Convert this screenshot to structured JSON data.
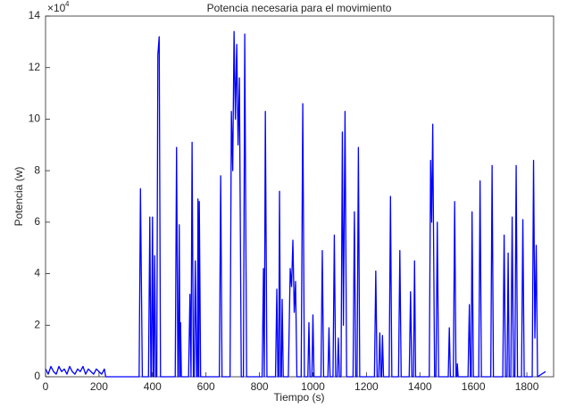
{
  "chart_data": {
    "type": "line",
    "title": "Potencia necesaria para el movimiento",
    "x_label": "Tiempo (s)",
    "y_label": "Potencia (w)",
    "y_multiplier": "×10",
    "y_exponent": "4",
    "xlim": [
      0,
      1900
    ],
    "xticks": [
      0,
      200,
      400,
      600,
      800,
      1000,
      1200,
      1400,
      1600,
      1800
    ],
    "ylim": [
      0,
      14
    ],
    "yticks": [
      0,
      2,
      4,
      6,
      8,
      10,
      12,
      14
    ],
    "series": [
      {
        "color": "#0000ff",
        "x": [
          0,
          10,
          20,
          30,
          40,
          50,
          60,
          70,
          80,
          90,
          100,
          110,
          120,
          130,
          140,
          150,
          160,
          170,
          180,
          190,
          200,
          210,
          220,
          225,
          350,
          355,
          362,
          385,
          390,
          394,
          396,
          400,
          403,
          405,
          408,
          412,
          416,
          420,
          425,
          430,
          485,
          490,
          495,
          497,
          500,
          503,
          505,
          508,
          535,
          540,
          544,
          548,
          553,
          556,
          560,
          565,
          568,
          570,
          573,
          575,
          580,
          650,
          655,
          660,
          690,
          695,
          700,
          705,
          710,
          715,
          720,
          725,
          732,
          740,
          745,
          752,
          810,
          815,
          818,
          822,
          828,
          860,
          865,
          869,
          872,
          875,
          879,
          882,
          885,
          889,
          908,
          915,
          920,
          925,
          930,
          935,
          940,
          956,
          962,
          968,
          981,
          985,
          989,
          996,
          1000,
          1004,
          1030,
          1035,
          1040,
          1056,
          1060,
          1064,
          1075,
          1080,
          1085,
          1091,
          1095,
          1099,
          1105,
          1110,
          1114,
          1120,
          1126,
          1150,
          1155,
          1160,
          1165,
          1170,
          1175,
          1230,
          1235,
          1240,
          1246,
          1250,
          1254,
          1257,
          1260,
          1264,
          1285,
          1290,
          1295,
          1320,
          1325,
          1330,
          1360,
          1365,
          1370,
          1376,
          1380,
          1384,
          1435,
          1440,
          1444,
          1448,
          1455,
          1460,
          1465,
          1470,
          1506,
          1510,
          1514,
          1525,
          1530,
          1535,
          1538,
          1540,
          1543,
          1580,
          1585,
          1589,
          1592,
          1595,
          1600,
          1620,
          1625,
          1630,
          1665,
          1670,
          1675,
          1710,
          1715,
          1720,
          1726,
          1730,
          1734,
          1740,
          1745,
          1750,
          1755,
          1760,
          1765,
          1780,
          1785,
          1790,
          1820,
          1825,
          1830,
          1835,
          1840,
          1870
        ],
        "values": [
          0.3,
          0.1,
          0.4,
          0.2,
          0.1,
          0.4,
          0.2,
          0.3,
          0.1,
          0.4,
          0.2,
          0.1,
          0.3,
          0.2,
          0.4,
          0.1,
          0.3,
          0.2,
          0.1,
          0.3,
          0.2,
          0.1,
          0.3,
          0,
          0,
          7.3,
          0,
          0,
          6.2,
          0,
          0,
          6.2,
          0,
          0,
          4.7,
          0,
          0,
          12.5,
          13.2,
          0,
          0,
          8.9,
          0,
          0,
          5.9,
          0,
          2.1,
          0,
          0,
          3.2,
          0,
          9.1,
          0,
          0,
          4.5,
          0,
          0,
          6.9,
          0,
          6.8,
          0,
          0,
          7.8,
          0,
          0,
          10.3,
          8,
          13.4,
          10,
          12.9,
          9,
          11.6,
          0,
          0,
          13.3,
          0,
          0,
          4.2,
          0,
          10.3,
          0,
          0,
          3.4,
          0,
          0,
          7.2,
          0,
          0,
          3.0,
          0,
          0,
          4.2,
          3.5,
          5.3,
          2.5,
          3.7,
          0,
          0,
          10.6,
          0,
          0,
          2.1,
          0,
          0,
          2.4,
          0,
          0,
          4.9,
          0,
          0,
          1.9,
          0,
          0,
          5.5,
          0,
          0,
          1.5,
          0,
          0,
          9.5,
          2,
          10.3,
          0,
          0,
          6.4,
          0,
          0,
          8.9,
          0,
          0,
          4.1,
          0,
          0,
          1.7,
          0,
          0,
          1.6,
          0,
          0,
          7.0,
          0,
          0,
          4.9,
          0,
          0,
          3.3,
          0,
          0,
          4.5,
          0,
          0,
          8.4,
          6,
          9.8,
          0,
          0,
          6.0,
          0,
          0,
          1.9,
          0,
          0,
          6.8,
          0,
          0,
          0.5,
          0,
          0,
          2.8,
          0,
          0,
          6.4,
          0,
          0,
          7.6,
          0,
          0,
          8.2,
          0,
          0,
          5.5,
          0,
          0,
          4.8,
          0,
          0,
          6.2,
          0,
          0,
          8.2,
          0,
          0,
          6.1,
          0,
          0,
          8.4,
          1.5,
          5.1,
          0,
          0.2
        ]
      }
    ]
  }
}
